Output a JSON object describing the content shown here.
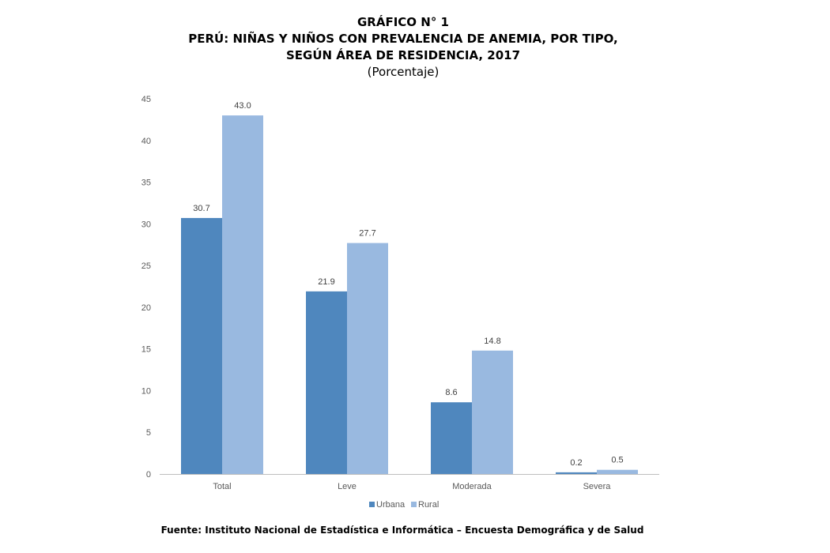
{
  "chart_data": {
    "type": "bar",
    "title_lines": [
      "GRÁFICO N° 1",
      "PERÚ: NIÑAS Y NIÑOS CON PREVALENCIA DE ANEMIA, POR TIPO,",
      "SEGÚN ÁREA DE RESIDENCIA, 2017"
    ],
    "subtitle": "(Porcentaje)",
    "categories": [
      "Total",
      "Leve",
      "Moderada",
      "Severa"
    ],
    "series": [
      {
        "name": "Urbana",
        "values": [
          30.7,
          21.9,
          8.6,
          0.2
        ],
        "color": "#4f87be"
      },
      {
        "name": "Rural",
        "values": [
          43.0,
          27.7,
          14.8,
          0.5
        ],
        "color": "#99b9e0"
      }
    ],
    "value_labels": [
      [
        "30.7",
        "21.9",
        "8.6",
        "0.2"
      ],
      [
        "43.0",
        "27.7",
        "14.8",
        "0.5"
      ]
    ],
    "ylim": [
      0,
      45
    ],
    "yticks": [
      0,
      5,
      10,
      15,
      20,
      25,
      30,
      35,
      40,
      45
    ],
    "grid": false,
    "legend_position": "bottom-center",
    "xlabel": "",
    "ylabel": ""
  },
  "source": "Fuente: Instituto Nacional de Estadística e Informática – Encuesta Demográfica y de Salud"
}
